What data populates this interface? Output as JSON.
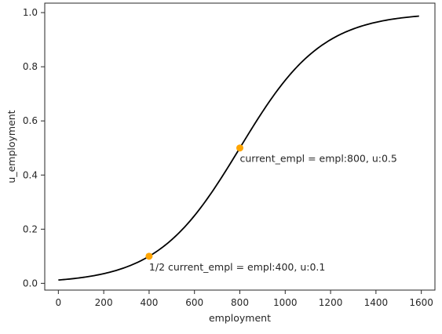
{
  "chart_data": {
    "type": "line",
    "title": "",
    "xlabel": "employment",
    "ylabel": "u_employment",
    "xlim": [
      -60,
      1660
    ],
    "ylim": [
      -0.025,
      1.035
    ],
    "xticks": [
      0,
      200,
      400,
      600,
      800,
      1000,
      1200,
      1400,
      1600
    ],
    "yticks": [
      0.0,
      0.2,
      0.4,
      0.6,
      0.8,
      1.0
    ],
    "xtick_labels": [
      "0",
      "200",
      "400",
      "600",
      "800",
      "1000",
      "1200",
      "1400",
      "1600"
    ],
    "ytick_labels": [
      "0.0",
      "0.2",
      "0.4",
      "0.6",
      "0.8",
      "1.0"
    ],
    "grid": false,
    "series": [
      {
        "color": "#000000",
        "curve": {
          "kind": "logistic",
          "midpoint": 800,
          "steepness": 0.0054930614
        },
        "x_range": [
          0,
          1590
        ]
      }
    ],
    "points": [
      {
        "x": 400,
        "y": 0.1,
        "color": "#ffa500"
      },
      {
        "x": 800,
        "y": 0.5,
        "color": "#ffa500"
      }
    ],
    "annotations": [
      {
        "text": "1/2 current_empl = empl:400, u:0.1",
        "x": 400,
        "y": 0.1
      },
      {
        "text": "current_empl = empl:800, u:0.5",
        "x": 800,
        "y": 0.5
      }
    ]
  }
}
